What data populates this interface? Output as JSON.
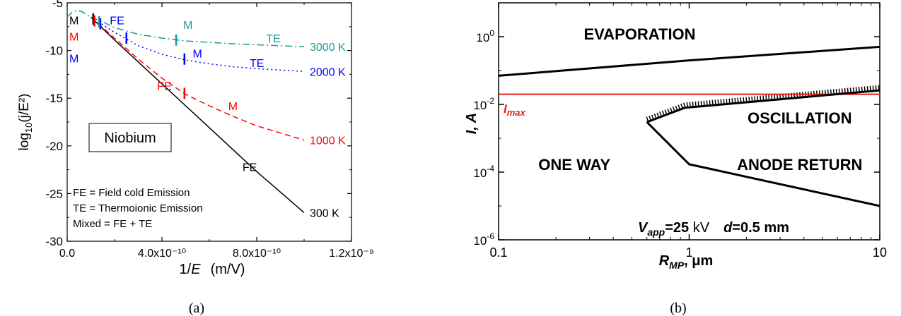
{
  "chart_data": [
    {
      "type": "line",
      "panel_label": "(a)",
      "xlabel": {
        "pre": "1/",
        "var": "E",
        "unit": "(m/V)"
      },
      "ylabel": {
        "base": "log",
        "sub": "10",
        "arg": "(j/E²)"
      },
      "xlim": [
        0,
        1.2e-09
      ],
      "ylim": [
        -30,
        -5
      ],
      "xticks": [
        {
          "v": 0,
          "label": "0.0"
        },
        {
          "v": 4e-10,
          "label": "4.0x10⁻¹⁰"
        },
        {
          "v": 8e-10,
          "label": "8.0x10⁻¹⁰"
        },
        {
          "v": 1.2e-09,
          "label": "1.2x10⁻⁹"
        }
      ],
      "yticks": [
        -5,
        -10,
        -15,
        -20,
        -25,
        -30
      ],
      "title_box": "Niobium",
      "legend_notes": [
        "FE = Field cold Emission",
        "TE = Thermoionic Emission",
        "Mixed = FE + TE"
      ],
      "series": [
        {
          "name": "300 K",
          "color": "#000000",
          "dash": "solid",
          "x": [
            1e-10,
            2e-10,
            4e-10,
            6e-10,
            8e-10,
            1e-09
          ],
          "y": [
            -6.5,
            -8.9,
            -13.5,
            -18.1,
            -22.7,
            -27.0
          ]
        },
        {
          "name": "1000 K",
          "color": "#ff0000",
          "dash": "dash",
          "x": [
            1e-10,
            2e-10,
            3e-10,
            4e-10,
            5e-10,
            6e-10,
            7e-10,
            8e-10,
            1e-09
          ],
          "y": [
            -6.5,
            -8.7,
            -10.9,
            -12.9,
            -14.6,
            -15.8,
            -16.9,
            -17.9,
            -19.4
          ]
        },
        {
          "name": "2000 K",
          "color": "#0000ff",
          "dash": "dot",
          "x": [
            1e-10,
            1.5e-10,
            2e-10,
            2.5e-10,
            3e-10,
            4e-10,
            5e-10,
            6e-10,
            7e-10,
            8e-10,
            1e-09
          ],
          "y": [
            -6.5,
            -7.3,
            -8.1,
            -8.8,
            -9.5,
            -10.4,
            -11.0,
            -11.4,
            -11.7,
            -11.9,
            -12.2
          ]
        },
        {
          "name": "3000 K",
          "color": "#1a9a96",
          "dash": "dashdot",
          "x": [
            1e-10,
            1.5e-10,
            2e-10,
            3e-10,
            4e-10,
            5e-10,
            6e-10,
            7e-10,
            8e-10,
            1e-09
          ],
          "y": [
            -6.5,
            -7.0,
            -7.6,
            -8.3,
            -8.7,
            -9.0,
            -9.15,
            -9.3,
            -9.4,
            -9.6
          ]
        }
      ],
      "curve_start": {
        "x": [
          0,
          2e-11,
          4e-11,
          6e-11,
          8e-11,
          1e-10
        ],
        "y": [
          -6.5,
          -6.0,
          -5.8,
          -5.9,
          -6.2,
          -6.5
        ]
      },
      "markers": [
        {
          "x": 1.1e-10,
          "y": -6.7,
          "color": "#000000"
        },
        {
          "x": 1.15e-10,
          "y": -6.9,
          "color": "#ff0000"
        },
        {
          "x": 1.4e-10,
          "y": -7.2,
          "color": "#0000ff"
        },
        {
          "x": 1.35e-10,
          "y": -7.0,
          "color": "#1a9a96"
        },
        {
          "x": 2.5e-10,
          "y": -8.7,
          "color": "#0000ff"
        },
        {
          "x": 4.6e-10,
          "y": -8.9,
          "color": "#1a9a96"
        },
        {
          "x": 4.95e-10,
          "y": -10.9,
          "color": "#0000ff"
        },
        {
          "x": 4.95e-10,
          "y": -14.5,
          "color": "#ff0000"
        }
      ],
      "annotations": [
        {
          "text": "M",
          "x": 9e-12,
          "y": -6.8,
          "color": "#000000"
        },
        {
          "text": "M",
          "x": 9e-12,
          "y": -8.5,
          "color": "#ff0000"
        },
        {
          "text": "M",
          "x": 9e-12,
          "y": -10.8,
          "color": "#0000ff"
        },
        {
          "text": "FE",
          "x": 1.8e-10,
          "y": -6.8,
          "color": "#0000ff"
        },
        {
          "text": "M",
          "x": 4.9e-10,
          "y": -7.3,
          "color": "#1a9a96"
        },
        {
          "text": "M",
          "x": 5.3e-10,
          "y": -10.3,
          "color": "#0000ff"
        },
        {
          "text": "TE",
          "x": 8.4e-10,
          "y": -8.7,
          "color": "#1a9a96"
        },
        {
          "text": "TE",
          "x": 7.7e-10,
          "y": -11.3,
          "color": "#0000ff"
        },
        {
          "text": "FE",
          "x": 3.8e-10,
          "y": -13.7,
          "color": "#ff0000"
        },
        {
          "text": "M",
          "x": 6.8e-10,
          "y": -15.8,
          "color": "#ff0000"
        },
        {
          "text": "FE",
          "x": 7.4e-10,
          "y": -22.2,
          "color": "#000000"
        }
      ]
    },
    {
      "type": "line",
      "panel_label": "(b)",
      "xscale": "log",
      "yscale": "log",
      "xlim": [
        0.1,
        10
      ],
      "ylim": [
        1e-06,
        10
      ],
      "xticks": [
        {
          "v": 0.1,
          "label": "0.1"
        },
        {
          "v": 1,
          "label": "1"
        },
        {
          "v": 10,
          "label": "10"
        }
      ],
      "yticks": [
        {
          "v": 1e-06,
          "base": "10",
          "exp": "-6"
        },
        {
          "v": 0.0001,
          "base": "10",
          "exp": "-4"
        },
        {
          "v": 0.01,
          "base": "10",
          "exp": "-2"
        },
        {
          "v": 1,
          "base": "10",
          "exp": "0"
        }
      ],
      "xlabel": {
        "main": "R",
        "sub": "MP",
        "rest": ", μm"
      },
      "ylabel": "I, A",
      "series": [
        {
          "name": "evaporation boundary",
          "color": "#000000",
          "x": [
            0.1,
            1,
            10
          ],
          "y": [
            0.07,
            0.2,
            0.5
          ]
        },
        {
          "name": "I_max",
          "color": "#e02010",
          "x": [
            0.1,
            10
          ],
          "y": [
            0.02,
            0.02
          ]
        },
        {
          "name": "oscillation boundary",
          "color": "#000000",
          "x": [
            0.6,
            0.95,
            1.5,
            10
          ],
          "y": [
            0.003,
            0.008,
            0.01,
            0.026
          ]
        },
        {
          "name": "anode return boundary",
          "color": "#000000",
          "x": [
            0.6,
            1.0,
            10
          ],
          "y": [
            0.003,
            0.00017,
            1e-05
          ]
        }
      ],
      "regions": [
        {
          "text": "EVAPORATION",
          "x": 0.55,
          "y": 1.2
        },
        {
          "text": "OSCILLATION",
          "x": 3.8,
          "y": 0.004
        },
        {
          "text": "ONE WAY",
          "x": 0.25,
          "y": 0.00017
        },
        {
          "text": "ANODE RETURN",
          "x": 3.8,
          "y": 0.00017
        }
      ],
      "imax_label": {
        "main": "I",
        "sub": "max"
      },
      "params": {
        "v": "V",
        "vsub": "app",
        "vval": "=25",
        "vunit": " kV",
        "d": "d",
        "dval": "=0.5 mm"
      }
    }
  ]
}
